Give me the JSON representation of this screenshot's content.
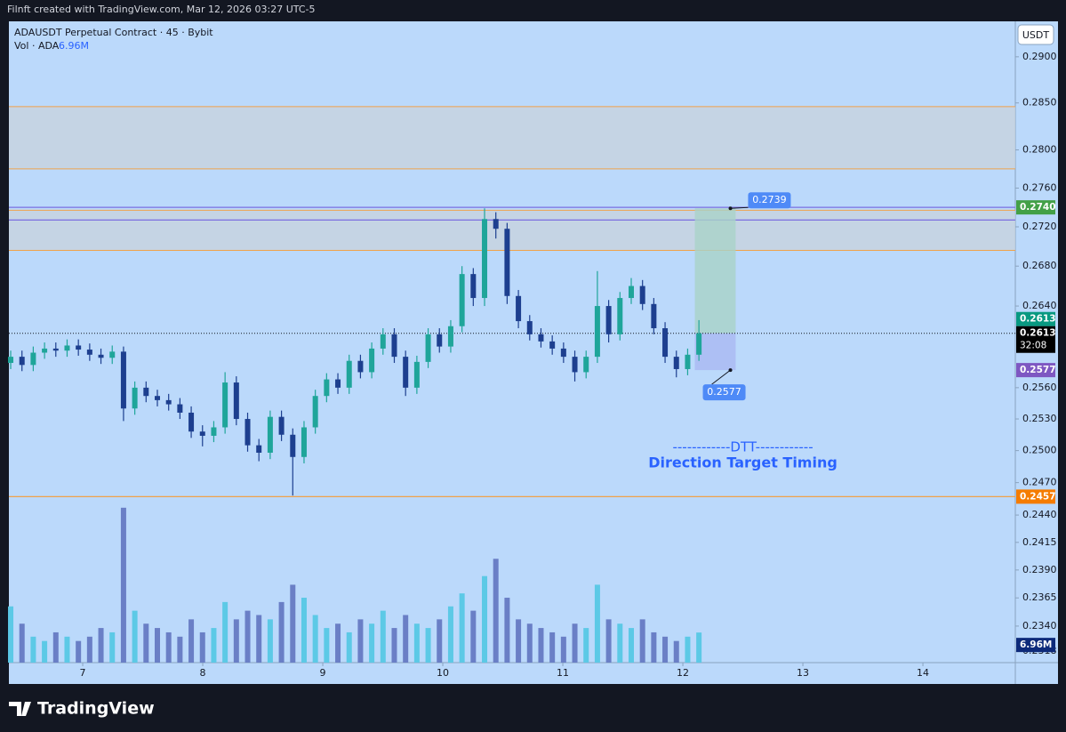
{
  "header": {
    "credit": "Filnft created with TradingView.com, Mar 12, 2026 03:27 UTC-5"
  },
  "footer": {
    "brand": "TradingView"
  },
  "chart_data": {
    "type": "candlestick",
    "title": "ADAUSDT Perpetual Contract · 45 · Bybit",
    "currency": "USDT",
    "log_scale": true,
    "grid": false,
    "up_color": "#1fa59a",
    "down_color": "#1d3f8f",
    "x": [
      6.4,
      6.494,
      6.588,
      6.682,
      6.776,
      6.87,
      6.964,
      7.058,
      7.152,
      7.246,
      7.34,
      7.434,
      7.528,
      7.622,
      7.716,
      7.81,
      7.904,
      7.998,
      8.092,
      8.186,
      8.28,
      8.374,
      8.468,
      8.562,
      8.656,
      8.75,
      8.844,
      8.938,
      9.032,
      9.126,
      9.22,
      9.314,
      9.408,
      9.502,
      9.596,
      9.69,
      9.784,
      9.878,
      9.972,
      10.066,
      10.16,
      10.254,
      10.348,
      10.442,
      10.536,
      10.63,
      10.724,
      10.818,
      10.912,
      11.006,
      11.1,
      11.194,
      11.288,
      11.382,
      11.476,
      11.57,
      11.664,
      11.758,
      11.852,
      11.946,
      12.04,
      12.134
    ],
    "open": [
      0.2584,
      0.259,
      0.2582,
      0.2594,
      0.2598,
      0.2596,
      0.2601,
      0.2597,
      0.2592,
      0.2589,
      0.2595,
      0.254,
      0.256,
      0.2552,
      0.2548,
      0.2544,
      0.2536,
      0.2518,
      0.2514,
      0.2522,
      0.2565,
      0.253,
      0.2505,
      0.2498,
      0.2532,
      0.2515,
      0.2494,
      0.2522,
      0.2552,
      0.2568,
      0.256,
      0.2586,
      0.2575,
      0.2598,
      0.2612,
      0.259,
      0.256,
      0.2585,
      0.2612,
      0.26,
      0.262,
      0.2672,
      0.2648,
      0.2728,
      0.2718,
      0.265,
      0.2625,
      0.2612,
      0.2605,
      0.2598,
      0.259,
      0.2575,
      0.259,
      0.264,
      0.2612,
      0.2648,
      0.266,
      0.2642,
      0.2618,
      0.259,
      0.2578,
      0.2592
    ],
    "high": [
      0.2596,
      0.2596,
      0.26,
      0.2604,
      0.2604,
      0.2607,
      0.2607,
      0.2603,
      0.2598,
      0.2601,
      0.26,
      0.2566,
      0.2566,
      0.2558,
      0.2554,
      0.255,
      0.2542,
      0.2524,
      0.2528,
      0.2575,
      0.2571,
      0.2536,
      0.2511,
      0.2538,
      0.2538,
      0.2521,
      0.2528,
      0.2558,
      0.2574,
      0.2574,
      0.2592,
      0.2592,
      0.2604,
      0.2618,
      0.2618,
      0.2596,
      0.2591,
      0.2618,
      0.2618,
      0.2626,
      0.268,
      0.2678,
      0.2739,
      0.2735,
      0.2724,
      0.2656,
      0.2631,
      0.2618,
      0.2611,
      0.2604,
      0.2596,
      0.2596,
      0.2675,
      0.2646,
      0.2654,
      0.2668,
      0.2666,
      0.2648,
      0.2624,
      0.2596,
      0.2598,
      0.2626
    ],
    "low": [
      0.2578,
      0.2576,
      0.2576,
      0.2588,
      0.259,
      0.259,
      0.2591,
      0.2586,
      0.2583,
      0.2583,
      0.2528,
      0.2534,
      0.2546,
      0.2542,
      0.2538,
      0.253,
      0.2512,
      0.2504,
      0.2508,
      0.2516,
      0.2524,
      0.2499,
      0.249,
      0.2492,
      0.2509,
      0.2458,
      0.2488,
      0.2516,
      0.2546,
      0.2554,
      0.2554,
      0.2569,
      0.2569,
      0.2592,
      0.2584,
      0.2552,
      0.2554,
      0.2579,
      0.2594,
      0.2594,
      0.2614,
      0.264,
      0.264,
      0.2708,
      0.2642,
      0.2618,
      0.2606,
      0.2599,
      0.2592,
      0.2584,
      0.2566,
      0.2569,
      0.2584,
      0.2604,
      0.2606,
      0.2642,
      0.2636,
      0.2612,
      0.2584,
      0.257,
      0.2572,
      0.2586
    ],
    "close": [
      0.259,
      0.2582,
      0.2594,
      0.2598,
      0.2596,
      0.2601,
      0.2597,
      0.2592,
      0.2589,
      0.2595,
      0.254,
      0.256,
      0.2552,
      0.2548,
      0.2544,
      0.2536,
      0.2518,
      0.2514,
      0.2522,
      0.2565,
      0.253,
      0.2505,
      0.2498,
      0.2532,
      0.2515,
      0.2494,
      0.2522,
      0.2552,
      0.2568,
      0.256,
      0.2586,
      0.2575,
      0.2598,
      0.2612,
      0.259,
      0.256,
      0.2585,
      0.2612,
      0.26,
      0.262,
      0.2672,
      0.2648,
      0.2728,
      0.2718,
      0.265,
      0.2625,
      0.2612,
      0.2605,
      0.2598,
      0.259,
      0.2575,
      0.259,
      0.264,
      0.2612,
      0.2648,
      0.266,
      0.2642,
      0.2618,
      0.259,
      0.2578,
      0.2592,
      0.2613
    ],
    "volume": {
      "name": "Vol · ADA",
      "up_color": "#5cc9e6",
      "down_color": "#6a7fc6",
      "ylim": [
        0,
        37000000
      ],
      "current_label": "6.96M",
      "values": [
        13000000,
        9000000,
        6000000,
        5000000,
        7000000,
        6000000,
        5000000,
        6000000,
        8000000,
        7000000,
        35800000,
        12000000,
        9000000,
        8000000,
        7000000,
        6000000,
        10000000,
        7000000,
        8000000,
        14000000,
        10000000,
        12000000,
        11000000,
        10000000,
        14000000,
        18000000,
        15000000,
        11000000,
        8000000,
        9000000,
        7000000,
        10000000,
        9000000,
        12000000,
        8000000,
        11000000,
        9000000,
        8000000,
        10000000,
        13000000,
        16000000,
        12000000,
        20000000,
        24000000,
        15000000,
        10000000,
        9000000,
        8000000,
        7000000,
        6000000,
        9000000,
        8000000,
        18000000,
        10000000,
        9000000,
        8000000,
        10000000,
        7000000,
        6000000,
        5000000,
        6000000,
        6960000
      ]
    },
    "xlim": [
      6.385,
      14.77
    ],
    "xticks": [
      7,
      8,
      9,
      10,
      11,
      12,
      13,
      14
    ],
    "ylim": [
      0.2308,
      0.2939
    ],
    "yticks": [
      {
        "value": 0.29,
        "label": "0.2900"
      },
      {
        "value": 0.285,
        "label": "0.2850"
      },
      {
        "value": 0.28,
        "label": "0.2800"
      },
      {
        "value": 0.276,
        "label": "0.2760"
      },
      {
        "value": 0.272,
        "label": "0.2720"
      },
      {
        "value": 0.268,
        "label": "0.2680"
      },
      {
        "value": 0.264,
        "label": "0.2640"
      },
      {
        "value": 0.256,
        "label": "0.2560"
      },
      {
        "value": 0.253,
        "label": "0.2530"
      },
      {
        "value": 0.25,
        "label": "0.2500"
      },
      {
        "value": 0.247,
        "label": "0.2470"
      },
      {
        "value": 0.244,
        "label": "0.2440"
      },
      {
        "value": 0.2415,
        "label": "0.2415"
      },
      {
        "value": 0.239,
        "label": "0.2390"
      },
      {
        "value": 0.2365,
        "label": "0.2365"
      },
      {
        "value": 0.234,
        "label": "0.2340"
      },
      {
        "value": 0.2318,
        "label": "0.2318"
      }
    ],
    "zones": [
      {
        "top": 0.2846,
        "bottom": 0.278,
        "color": "#c8d2dc",
        "edge": "#f0a24a"
      },
      {
        "top": 0.2737,
        "bottom": 0.2696,
        "color": "#c8d2dc",
        "edge": "#f0a24a"
      }
    ],
    "lines": [
      {
        "value": 0.274,
        "color": "#7b6fe0"
      },
      {
        "value": 0.2727,
        "color": "#7b6fe0"
      },
      {
        "value": 0.2457,
        "color": "#f0a24a"
      }
    ],
    "current": {
      "value": 0.2613,
      "countdown": "32:08"
    },
    "position": {
      "start": 12.1,
      "end": 12.44,
      "entry": 0.2613,
      "target": 0.2739,
      "stop": 0.2577,
      "target_label": "0.2739",
      "stop_label": "0.2577",
      "target_color": "#a9d2c8",
      "stop_color": "#aab8f2"
    },
    "axis_labels": [
      {
        "value": 0.274,
        "label": "0.2740",
        "color": "#43a047"
      },
      {
        "value": 0.2613,
        "label": "0.2613",
        "color": "#089981"
      },
      {
        "value": 0.2577,
        "label": "0.2577",
        "color": "#7e57c2"
      },
      {
        "value": 0.2457,
        "label": "0.2457",
        "color": "#f57c00"
      }
    ],
    "annotation": {
      "line1": "------------DTT------------",
      "line2": "Direction Target Timing",
      "color": "#2962ff"
    }
  }
}
